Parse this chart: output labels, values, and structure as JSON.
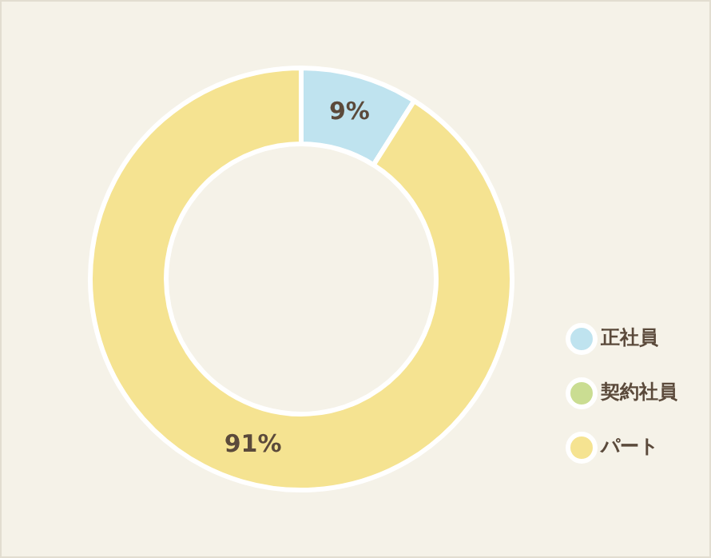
{
  "chart_data": {
    "type": "donut",
    "categories": [
      "正社員",
      "契約社員",
      "パート"
    ],
    "values": [
      9,
      0,
      91
    ],
    "colors": [
      "#bfe3ef",
      "#cadd92",
      "#f5e391"
    ],
    "value_labels": [
      "9%",
      null,
      "91%"
    ],
    "legend": "bottom right"
  }
}
